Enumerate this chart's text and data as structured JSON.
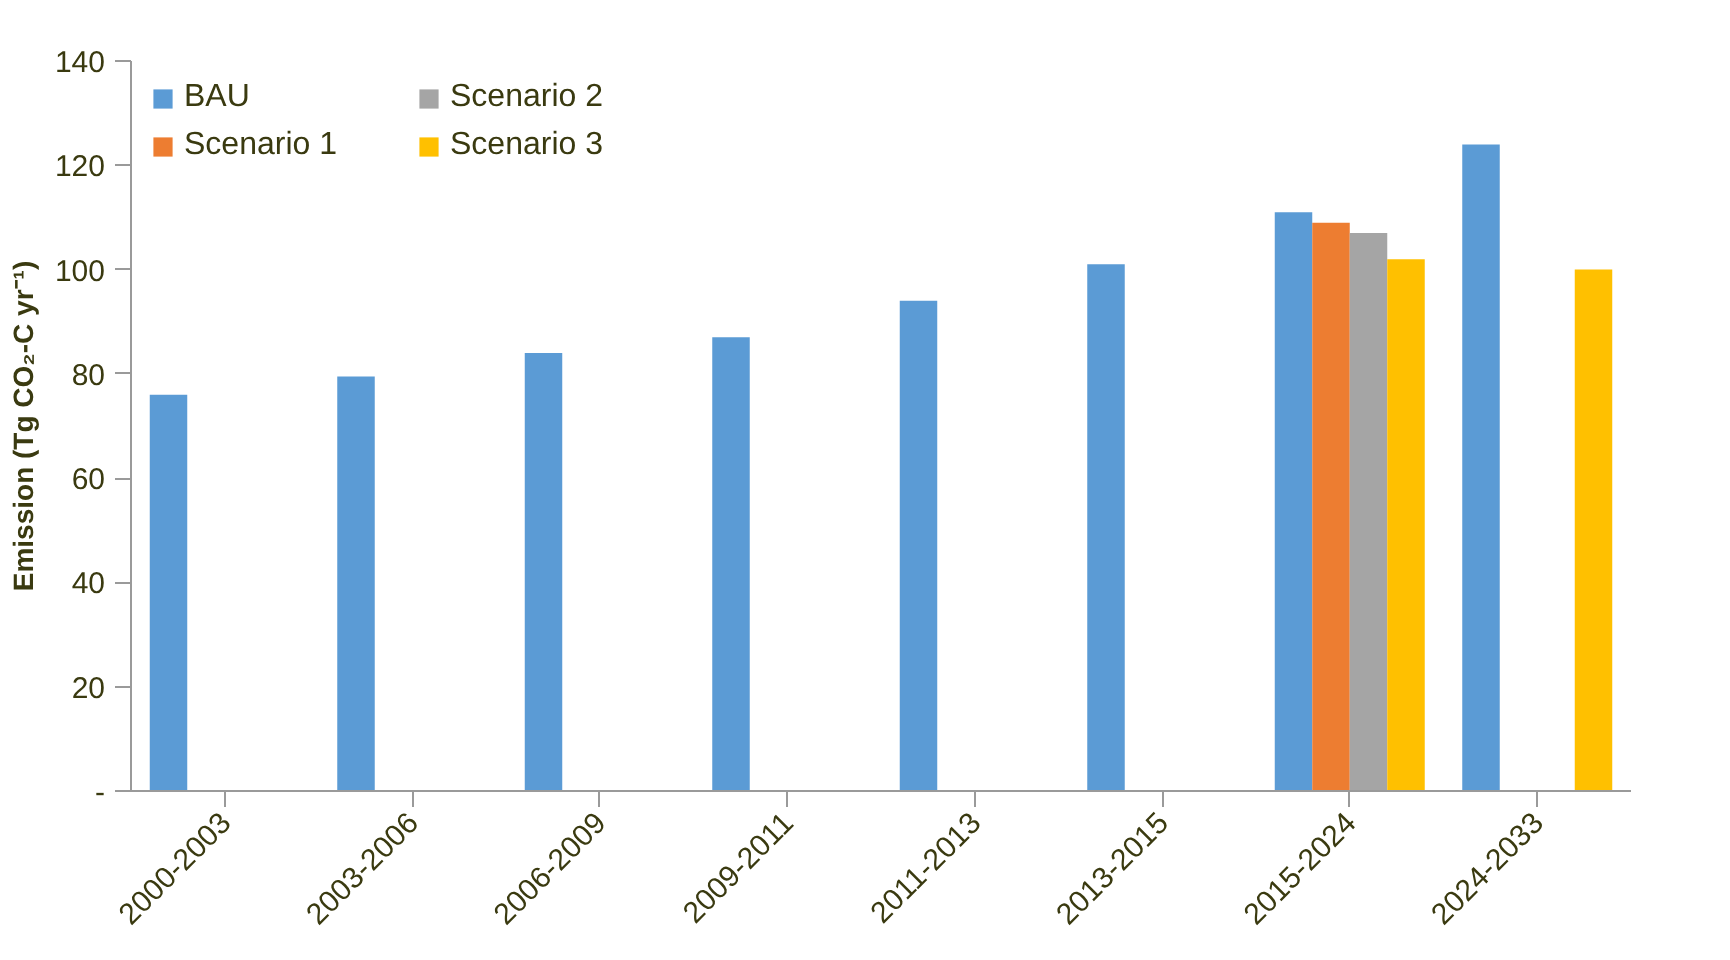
{
  "chart_data": {
    "type": "bar",
    "ylabel": "Emission (Tg CO₂-C yr⁻¹)",
    "categories": [
      "2000-2003",
      "2003-2006",
      "2006-2009",
      "2009-2011",
      "2011-2013",
      "2013-2015",
      "2015-2024",
      "2024-2033"
    ],
    "series": [
      {
        "name": "BAU",
        "color": "#5b9bd5",
        "values": [
          76,
          79.5,
          84,
          87,
          94,
          101,
          111,
          124
        ]
      },
      {
        "name": "Scenario 1",
        "color": "#ed7d31",
        "values": [
          null,
          null,
          null,
          null,
          null,
          null,
          109,
          null
        ]
      },
      {
        "name": "Scenario 2",
        "color": "#a5a5a5",
        "values": [
          null,
          null,
          null,
          null,
          null,
          null,
          107,
          null
        ]
      },
      {
        "name": "Scenario 3",
        "color": "#ffc000",
        "values": [
          null,
          null,
          null,
          null,
          null,
          null,
          102,
          100
        ]
      }
    ],
    "ylim": [
      0,
      140
    ],
    "yticks": [
      {
        "value": 0,
        "label": "-"
      },
      20,
      40,
      60,
      80,
      100,
      120,
      140
    ],
    "grid": false,
    "legend": "top left"
  }
}
